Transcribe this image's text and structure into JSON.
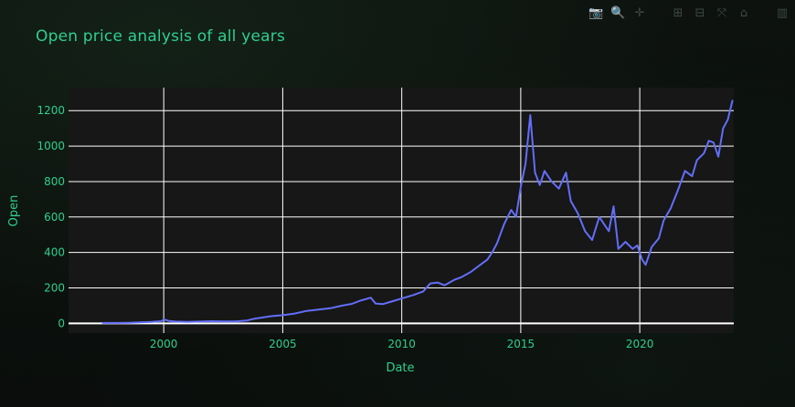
{
  "modebar": {
    "buttons": [
      {
        "name": "camera-icon",
        "glyph": "📷"
      },
      {
        "name": "zoom-icon",
        "glyph": "🔍"
      },
      {
        "name": "pan-icon",
        "glyph": "✛"
      },
      {
        "name": "zoom-in-icon",
        "glyph": "⊞"
      },
      {
        "name": "zoom-out-icon",
        "glyph": "⊟"
      },
      {
        "name": "autoscale-icon",
        "glyph": "⤧"
      },
      {
        "name": "home-icon",
        "glyph": "⌂"
      },
      {
        "name": "plotly-logo-icon",
        "glyph": "▥"
      }
    ]
  },
  "chart_data": {
    "type": "line",
    "title": "Open price analysis of all years",
    "xlabel": "Date",
    "ylabel": "Open",
    "xlim": [
      1996.0,
      2023.95
    ],
    "ylim": [
      -55,
      1330
    ],
    "x_ticks": [
      2000,
      2005,
      2010,
      2015,
      2020
    ],
    "y_ticks": [
      0,
      200,
      400,
      600,
      800,
      1000,
      1200
    ],
    "grid": true,
    "legend": "none",
    "colors": {
      "line": "#636efa",
      "title": "#2fcf8d",
      "ticks": "#2fcf8d",
      "plot_bg": "#161716",
      "grid": "#ffffff"
    },
    "series": [
      {
        "x": [
          1997.4,
          1998.0,
          1998.5,
          1999.0,
          1999.5,
          1999.9,
          2000.0,
          2000.2,
          2000.5,
          2000.8,
          2001.0,
          2001.5,
          2002.0,
          2002.5,
          2003.0,
          2003.5,
          2003.8,
          2004.0,
          2004.5,
          2005.0,
          2005.5,
          2006.0,
          2006.5,
          2007.0,
          2007.5,
          2007.9,
          2008.3,
          2008.7,
          2008.9,
          2009.2,
          2009.5,
          2010.0,
          2010.5,
          2010.9,
          2011.2,
          2011.5,
          2011.8,
          2012.2,
          2012.5,
          2012.9,
          2013.3,
          2013.6,
          2013.8,
          2014.0,
          2014.3,
          2014.6,
          2014.8,
          2015.0,
          2015.2,
          2015.4,
          2015.6,
          2015.8,
          2016.0,
          2016.3,
          2016.6,
          2016.9,
          2017.1,
          2017.4,
          2017.7,
          2018.0,
          2018.3,
          2018.5,
          2018.7,
          2018.9,
          2019.1,
          2019.4,
          2019.7,
          2019.9,
          2020.1,
          2020.25,
          2020.5,
          2020.8,
          2021.0,
          2021.3,
          2021.6,
          2021.9,
          2022.2,
          2022.4,
          2022.7,
          2022.9,
          2023.1,
          2023.3,
          2023.5,
          2023.7,
          2023.9
        ],
        "y": [
          2,
          2,
          3,
          5,
          8,
          12,
          22,
          14,
          10,
          9,
          8,
          10,
          12,
          11,
          11,
          16,
          26,
          30,
          40,
          46,
          55,
          70,
          78,
          85,
          100,
          110,
          130,
          145,
          112,
          108,
          120,
          140,
          160,
          180,
          225,
          230,
          215,
          245,
          260,
          290,
          330,
          360,
          400,
          450,
          560,
          640,
          600,
          770,
          900,
          1175,
          850,
          780,
          860,
          800,
          760,
          850,
          690,
          620,
          520,
          470,
          600,
          560,
          520,
          660,
          420,
          460,
          420,
          440,
          360,
          330,
          430,
          480,
          580,
          650,
          750,
          860,
          830,
          920,
          960,
          1030,
          1020,
          940,
          1100,
          1150,
          1260
        ]
      }
    ]
  }
}
